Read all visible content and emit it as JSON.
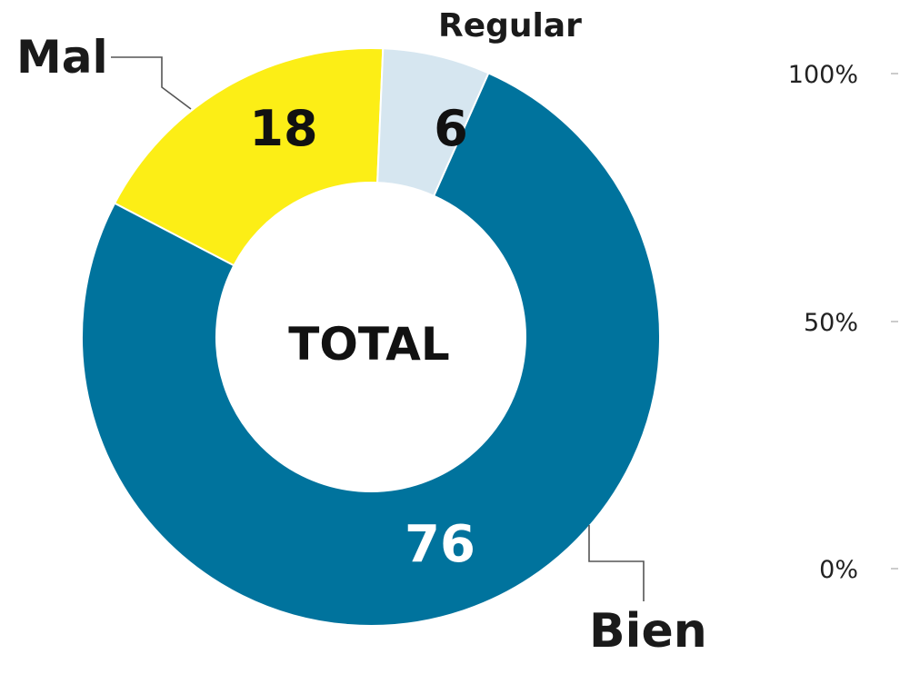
{
  "chart_data": {
    "type": "pie",
    "style": "donut",
    "center_label": "TOTAL",
    "slices": [
      {
        "label": "Bien",
        "value": 76,
        "color": "#00739d",
        "value_color": "#ffffff"
      },
      {
        "label": "Mal",
        "value": 18,
        "color": "#fcee16",
        "value_color": "#111111"
      },
      {
        "label": "Regular",
        "value": 6,
        "color": "#d6e6f0",
        "value_color": "#111111"
      }
    ],
    "scale_ticks": [
      "100%",
      "50%",
      "0%"
    ]
  }
}
